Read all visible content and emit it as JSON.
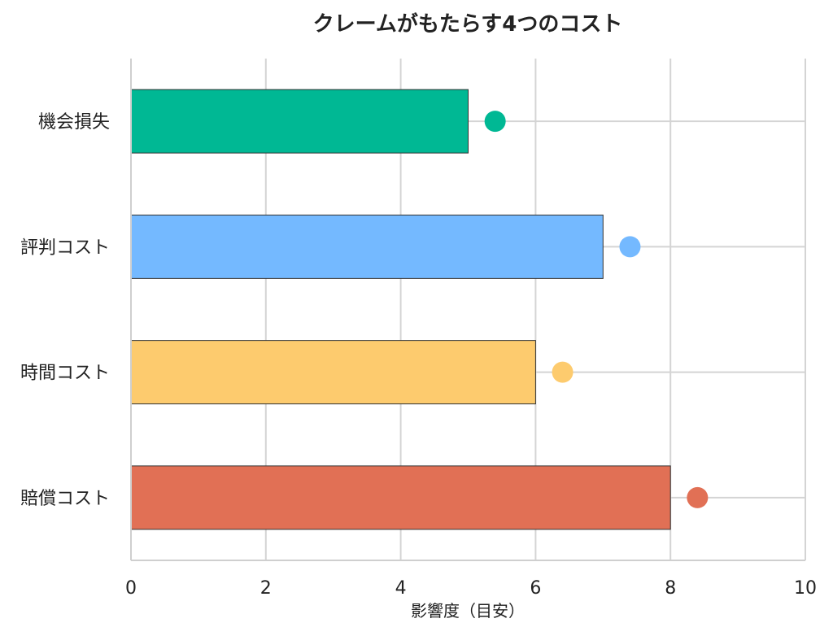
{
  "chart_data": {
    "type": "bar",
    "orientation": "horizontal",
    "title": "クレームがもたらす4つのコスト",
    "xlabel": "影響度（目安）",
    "ylabel": "",
    "xlim": [
      0,
      10
    ],
    "xticks": [
      0,
      2,
      4,
      6,
      8,
      10
    ],
    "grid": true,
    "categories": [
      "機会損失",
      "評判コスト",
      "時間コスト",
      "賠償コスト"
    ],
    "values": [
      5,
      7,
      6,
      8
    ],
    "markers": [
      5.4,
      7.4,
      6.4,
      8.4
    ],
    "colors": [
      "#00b894",
      "#74b9ff",
      "#fdcb6e",
      "#e17055"
    ]
  }
}
